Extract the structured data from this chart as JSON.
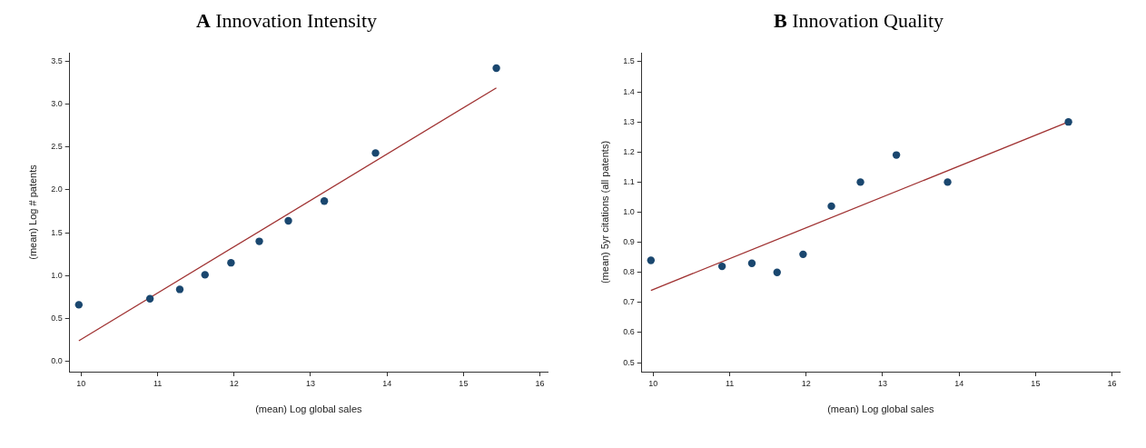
{
  "chart_data": [
    {
      "type": "scatter",
      "title": "A Innovation Intensity",
      "xlabel": "(mean) Log global sales",
      "ylabel": "(mean) Log # patents",
      "xlim": [
        9.85,
        16.1
      ],
      "xticks": [
        10,
        11,
        12,
        13,
        14,
        15,
        16
      ],
      "ylim": [
        -0.12,
        3.6
      ],
      "yticks": [
        {
          "value": 0,
          "label": "0.0"
        },
        0.5,
        {
          "value": 1,
          "label": "1.0"
        },
        1.5,
        {
          "value": 2,
          "label": "2.0"
        },
        2.5,
        {
          "value": 3,
          "label": "3.0"
        },
        3.5
      ],
      "series": [
        {
          "color": "#1a476f",
          "marker": "circle",
          "x": [
            9.97,
            10.9,
            11.29,
            11.62,
            11.96,
            12.33,
            12.71,
            13.18,
            13.85,
            15.43
          ],
          "values": [
            0.66,
            0.73,
            0.84,
            1.01,
            1.15,
            1.4,
            1.64,
            1.87,
            2.43,
            3.42
          ]
        },
        {
          "type": "line",
          "color": "#a03232",
          "marker": "none",
          "x": [
            9.97,
            15.43
          ],
          "values": [
            0.24,
            3.19
          ]
        }
      ]
    },
    {
      "type": "scatter",
      "title": "B Innovation Quality",
      "xlabel": "(mean) Log global sales",
      "ylabel": "(mean) 5yr citations (all patents)",
      "xlim": [
        9.85,
        16.1
      ],
      "xticks": [
        10,
        11,
        12,
        13,
        14,
        15,
        16
      ],
      "ylim": [
        0.47,
        1.53
      ],
      "yticks": [
        0.5,
        0.6,
        0.7,
        0.8,
        0.9,
        {
          "value": 1,
          "label": "1.0"
        },
        1.1,
        1.2,
        1.3,
        1.4,
        1.5
      ],
      "series": [
        {
          "color": "#1a476f",
          "marker": "circle",
          "x": [
            9.97,
            10.9,
            11.29,
            11.62,
            11.96,
            12.33,
            12.71,
            13.18,
            13.85,
            15.43
          ],
          "values": [
            0.84,
            0.82,
            0.83,
            0.8,
            0.86,
            1.02,
            1.1,
            1.19,
            1.1,
            1.3
          ]
        },
        {
          "type": "line",
          "color": "#a03232",
          "marker": "none",
          "x": [
            9.97,
            15.43
          ],
          "values": [
            0.74,
            1.3
          ]
        }
      ]
    }
  ]
}
